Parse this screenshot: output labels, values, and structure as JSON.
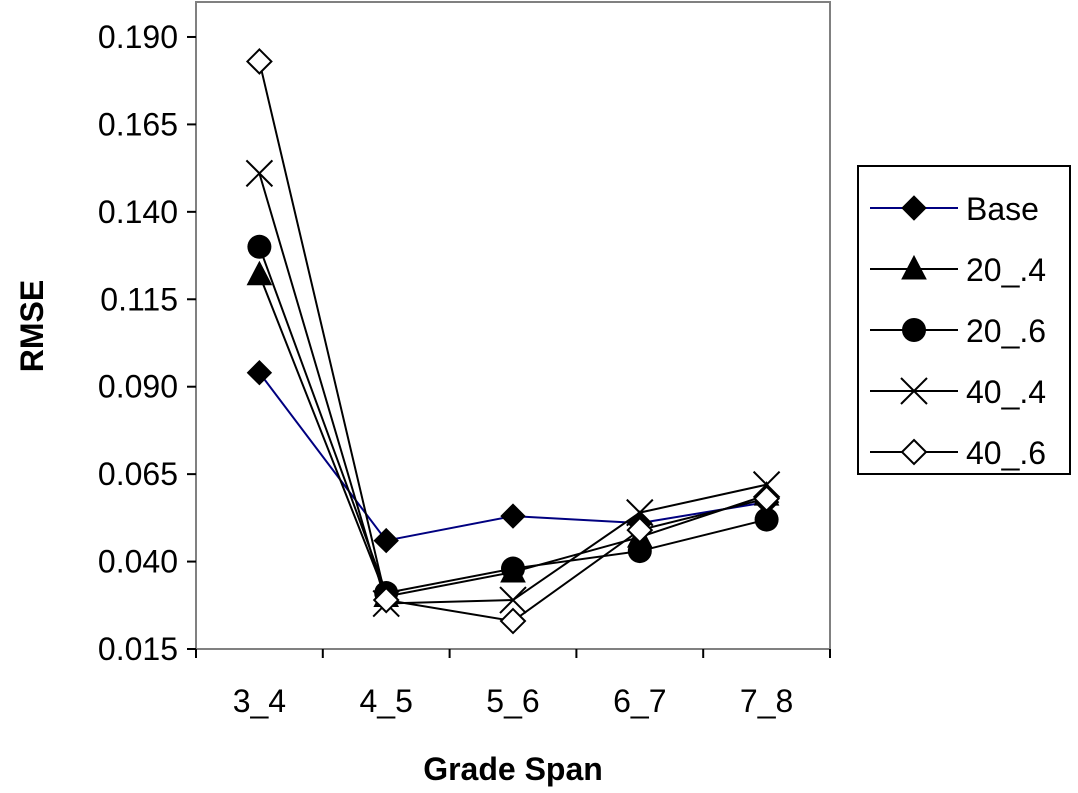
{
  "chart_data": {
    "type": "line",
    "title": "",
    "xlabel": "Grade Span",
    "ylabel": "RMSE",
    "categories": [
      "3_4",
      "4_5",
      "5_6",
      "6_7",
      "7_8"
    ],
    "ylim": [
      0.015,
      0.2
    ],
    "yticks": [
      "0.015",
      "0.040",
      "0.065",
      "0.090",
      "0.115",
      "0.140",
      "0.165",
      "0.190"
    ],
    "grid": false,
    "legend_position": "right",
    "series": [
      {
        "name": "Base",
        "marker": "diamond-filled",
        "line_color": "#000080",
        "values": [
          0.094,
          0.046,
          0.053,
          0.051,
          0.057
        ]
      },
      {
        "name": "20_.4",
        "marker": "triangle-filled",
        "line_color": "#000000",
        "values": [
          0.122,
          0.03,
          0.037,
          0.047,
          0.059
        ]
      },
      {
        "name": "20_.6",
        "marker": "circle-filled",
        "line_color": "#000000",
        "values": [
          0.13,
          0.031,
          0.038,
          0.043,
          0.052
        ]
      },
      {
        "name": "40_.4",
        "marker": "x",
        "line_color": "#000000",
        "values": [
          0.151,
          0.028,
          0.029,
          0.054,
          0.062
        ]
      },
      {
        "name": "40_.6",
        "marker": "diamond-open",
        "line_color": "#000000",
        "values": [
          0.183,
          0.029,
          0.023,
          0.049,
          0.058
        ]
      }
    ]
  }
}
